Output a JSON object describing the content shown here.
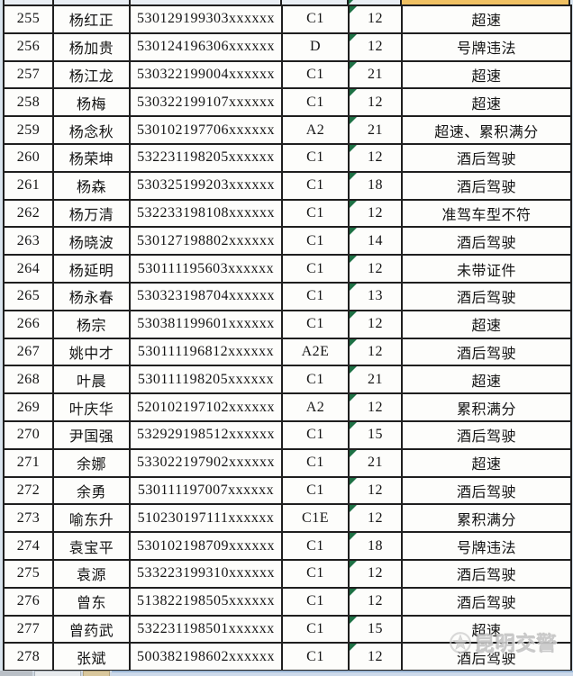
{
  "app": {
    "watermark": {
      "text": "昆明交警"
    },
    "colors": {
      "grid_line": "#1f1f1f",
      "cell_bg": "#fdfdfb",
      "margin_bg": "#d9e4ee",
      "clipped_header_bg": "#e9eef4",
      "clipped_header_highlight": "#f0c163",
      "error_triangle_green": "#1e7145",
      "watermark_gray": "#c6c6c6"
    }
  },
  "table": {
    "rows": [
      {
        "index": "255",
        "name": "杨红正",
        "id_masked": "530129199303xxxxxx",
        "license": "C1",
        "points": "12",
        "violation": "超速"
      },
      {
        "index": "256",
        "name": "杨加贵",
        "id_masked": "530124196306xxxxxx",
        "license": "D",
        "points": "12",
        "violation": "号牌违法"
      },
      {
        "index": "257",
        "name": "杨江龙",
        "id_masked": "530322199004xxxxxx",
        "license": "C1",
        "points": "21",
        "violation": "超速"
      },
      {
        "index": "258",
        "name": "杨梅",
        "id_masked": "530322199107xxxxxx",
        "license": "C1",
        "points": "12",
        "violation": "超速"
      },
      {
        "index": "259",
        "name": "杨念秋",
        "id_masked": "530102197706xxxxxx",
        "license": "A2",
        "points": "21",
        "violation": "超速、累积满分"
      },
      {
        "index": "260",
        "name": "杨荣坤",
        "id_masked": "532231198205xxxxxx",
        "license": "C1",
        "points": "12",
        "violation": "酒后驾驶"
      },
      {
        "index": "261",
        "name": "杨森",
        "id_masked": "530325199203xxxxxx",
        "license": "C1",
        "points": "18",
        "violation": "酒后驾驶"
      },
      {
        "index": "262",
        "name": "杨万清",
        "id_masked": "532233198108xxxxxx",
        "license": "C1",
        "points": "12",
        "violation": "准驾车型不符"
      },
      {
        "index": "263",
        "name": "杨晓波",
        "id_masked": "530127198802xxxxxx",
        "license": "C1",
        "points": "14",
        "violation": "酒后驾驶"
      },
      {
        "index": "264",
        "name": "杨延明",
        "id_masked": "530111195603xxxxxx",
        "license": "C1",
        "points": "12",
        "violation": "未带证件"
      },
      {
        "index": "265",
        "name": "杨永春",
        "id_masked": "530323198704xxxxxx",
        "license": "C1",
        "points": "13",
        "violation": "酒后驾驶"
      },
      {
        "index": "266",
        "name": "杨宗",
        "id_masked": "530381199601xxxxxx",
        "license": "C1",
        "points": "12",
        "violation": "超速"
      },
      {
        "index": "267",
        "name": "姚中才",
        "id_masked": "530111196812xxxxxx",
        "license": "A2E",
        "points": "12",
        "violation": "酒后驾驶"
      },
      {
        "index": "268",
        "name": "叶晨",
        "id_masked": "530111198205xxxxxx",
        "license": "C1",
        "points": "21",
        "violation": "超速"
      },
      {
        "index": "269",
        "name": "叶庆华",
        "id_masked": "520102197102xxxxxx",
        "license": "A2",
        "points": "12",
        "violation": "累积满分"
      },
      {
        "index": "270",
        "name": "尹国强",
        "id_masked": "532929198512xxxxxx",
        "license": "C1",
        "points": "15",
        "violation": "酒后驾驶"
      },
      {
        "index": "271",
        "name": "余娜",
        "id_masked": "533022197902xxxxxx",
        "license": "C1",
        "points": "21",
        "violation": "超速"
      },
      {
        "index": "272",
        "name": "余勇",
        "id_masked": "530111197007xxxxxx",
        "license": "C1",
        "points": "12",
        "violation": "酒后驾驶"
      },
      {
        "index": "273",
        "name": "喻东升",
        "id_masked": "510230197111xxxxxx",
        "license": "C1E",
        "points": "12",
        "violation": "累积满分"
      },
      {
        "index": "274",
        "name": "袁宝平",
        "id_masked": "530102198709xxxxxx",
        "license": "C1",
        "points": "18",
        "violation": "号牌违法"
      },
      {
        "index": "275",
        "name": "袁源",
        "id_masked": "533223199310xxxxxx",
        "license": "C1",
        "points": "12",
        "violation": "酒后驾驶"
      },
      {
        "index": "276",
        "name": "曾东",
        "id_masked": "513822198505xxxxxx",
        "license": "C1",
        "points": "12",
        "violation": "酒后驾驶"
      },
      {
        "index": "277",
        "name": "曾药武",
        "id_masked": "532231198501xxxxxx",
        "license": "C1",
        "points": "15",
        "violation": "超速"
      },
      {
        "index": "278",
        "name": "张斌",
        "id_masked": "500382198602xxxxxx",
        "license": "C1",
        "points": "12",
        "violation": "酒后驾驶"
      }
    ]
  }
}
